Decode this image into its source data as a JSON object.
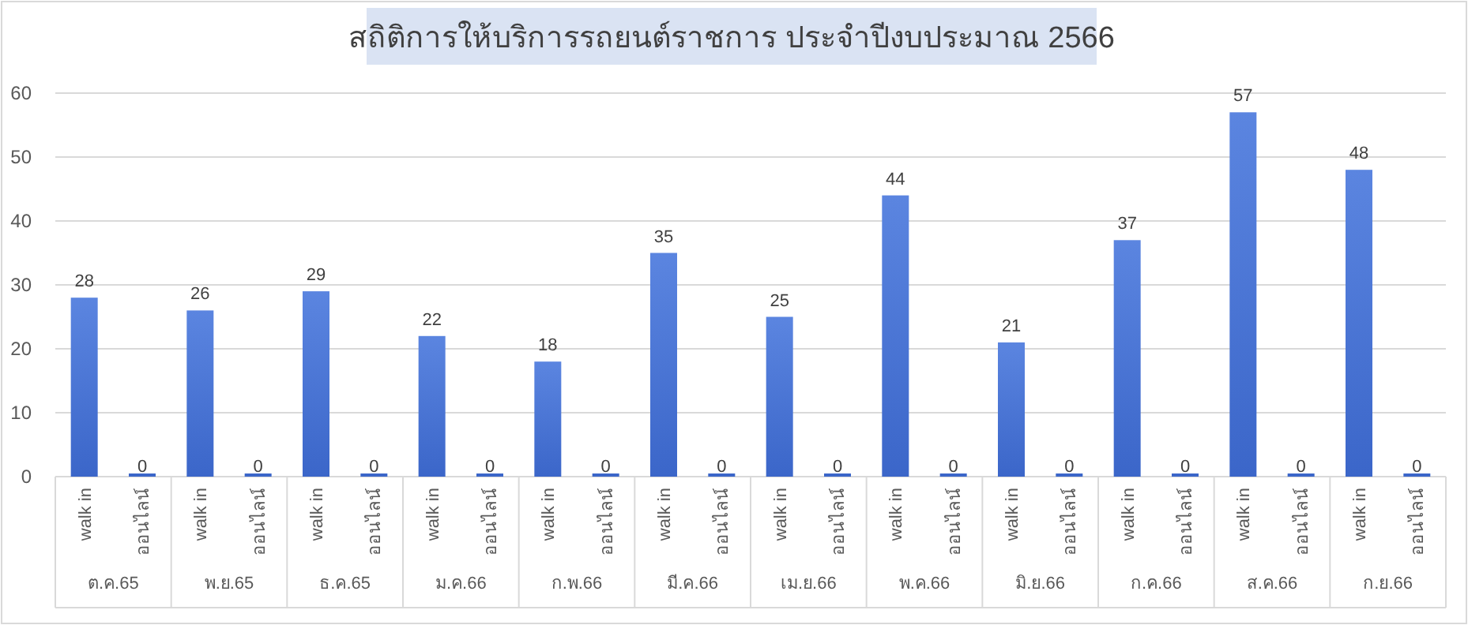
{
  "chart_data": {
    "type": "bar",
    "title": "สถิติการให้บริการรถยนต์ราชการ ประจำปีงบประมาณ 2566",
    "categories": [
      "ต.ค.65",
      "พ.ย.65",
      "ธ.ค.65",
      "ม.ค.66",
      "ก.พ.66",
      "มี.ค.66",
      "เม.ย.66",
      "พ.ค.66",
      "มิ.ย.66",
      "ก.ค.66",
      "ส.ค.66",
      "ก.ย.66"
    ],
    "series": [
      {
        "name": "walk in",
        "color": "#3b66c9",
        "values": [
          28,
          26,
          29,
          22,
          18,
          35,
          25,
          44,
          21,
          37,
          57,
          48
        ]
      },
      {
        "name": "ออนไลน์",
        "color": "#3b66c9",
        "values": [
          0,
          0,
          0,
          0,
          0,
          0,
          0,
          0,
          0,
          0,
          0,
          0
        ]
      }
    ],
    "ylim": [
      0,
      60
    ],
    "yticks": [
      0,
      10,
      20,
      30,
      40,
      50,
      60
    ],
    "grid": "y",
    "data_labels": true
  }
}
